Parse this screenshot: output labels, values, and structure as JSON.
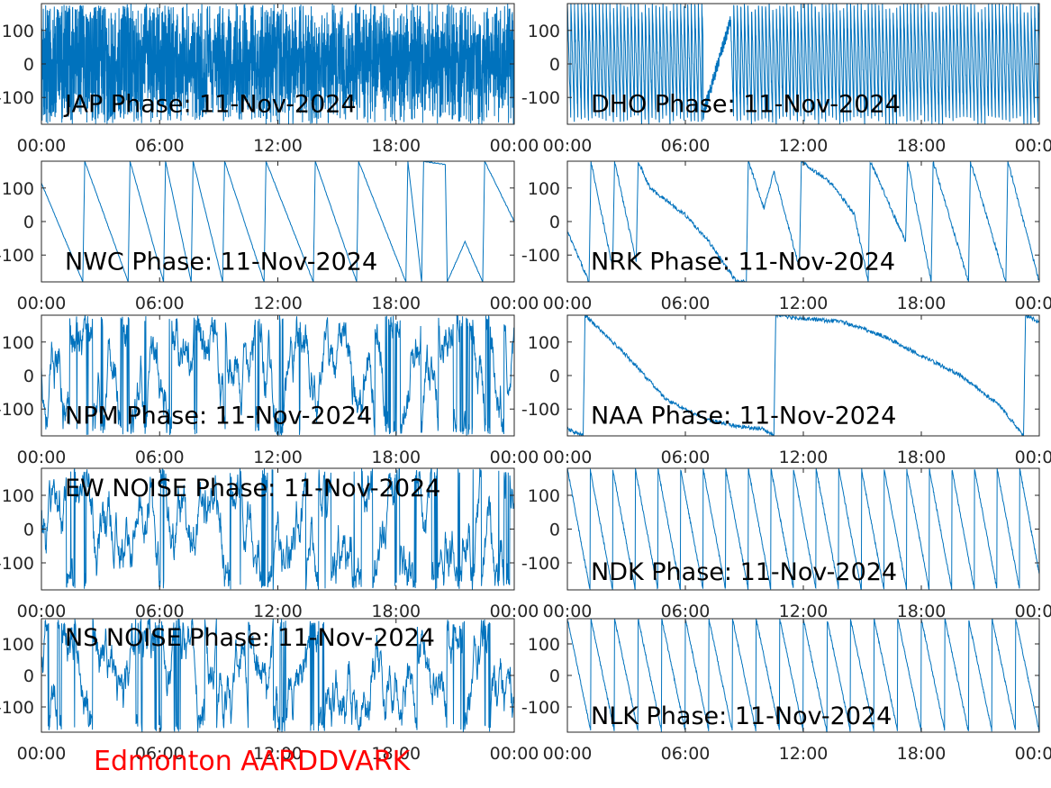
{
  "footer": "Edmonton AARDDVARK",
  "colors": {
    "trace": "#0072BD",
    "axes": "#262626",
    "footer": "#ff0000"
  },
  "chart_data": [
    {
      "type": "line",
      "title": "JAP Phase: 11-Nov-2024",
      "x_ticks": [
        "00:00",
        "06:00",
        "12:00",
        "18:00",
        "00:00"
      ],
      "y_ticks": [
        "-100",
        "0",
        "100"
      ],
      "ylim": [
        -180,
        180
      ],
      "xlim": [
        0,
        24
      ],
      "style": "dense-noise"
    },
    {
      "type": "line",
      "title": "DHO Phase: 11-Nov-2024",
      "x_ticks": [
        "00:00",
        "06:00",
        "12:00",
        "18:00",
        "00:00"
      ],
      "y_ticks": [
        "-100",
        "0",
        "100"
      ],
      "ylim": [
        -180,
        180
      ],
      "xlim": [
        0,
        24
      ],
      "style": "fast-sawtooth"
    },
    {
      "type": "line",
      "title": "NWC Phase: 11-Nov-2024",
      "x_ticks": [
        "00:00",
        "06:00",
        "12:00",
        "18:00",
        "00:00"
      ],
      "y_ticks": [
        "-100",
        "0",
        "100"
      ],
      "ylim": [
        -180,
        180
      ],
      "xlim": [
        0,
        24
      ],
      "style": "sawtooth",
      "points": [
        [
          0,
          115
        ],
        [
          2.1,
          -180
        ],
        [
          2.2,
          180
        ],
        [
          4.4,
          -180
        ],
        [
          4.5,
          180
        ],
        [
          6.2,
          -180
        ],
        [
          6.3,
          180
        ],
        [
          7.6,
          -180
        ],
        [
          7.7,
          180
        ],
        [
          9.2,
          -180
        ],
        [
          9.3,
          180
        ],
        [
          11.3,
          -180
        ],
        [
          11.4,
          180
        ],
        [
          13.8,
          -180
        ],
        [
          13.9,
          180
        ],
        [
          16,
          -180
        ],
        [
          16.1,
          180
        ],
        [
          18.5,
          -180
        ],
        [
          18.6,
          180
        ],
        [
          19.3,
          -180
        ],
        [
          19.4,
          180
        ],
        [
          20.5,
          170
        ],
        [
          20.6,
          -180
        ],
        [
          21.5,
          -60
        ],
        [
          22.4,
          -180
        ],
        [
          22.5,
          180
        ],
        [
          24,
          0
        ]
      ]
    },
    {
      "type": "line",
      "title": "NRK Phase: 11-Nov-2024",
      "x_ticks": [
        "00:00",
        "06:00",
        "12:00",
        "18:00",
        "00:00"
      ],
      "y_ticks": [
        "-100",
        "0",
        "100"
      ],
      "ylim": [
        -180,
        180
      ],
      "xlim": [
        0,
        24
      ],
      "style": "sawtooth-noisy",
      "points": [
        [
          0,
          -30
        ],
        [
          1.1,
          -180
        ],
        [
          1.2,
          180
        ],
        [
          2.3,
          -140
        ],
        [
          2.4,
          180
        ],
        [
          3.5,
          -120
        ],
        [
          3.6,
          180
        ],
        [
          4.2,
          100
        ],
        [
          6,
          20
        ],
        [
          7.2,
          -60
        ],
        [
          8.6,
          -180
        ],
        [
          9.1,
          -180
        ],
        [
          9.2,
          180
        ],
        [
          10,
          40
        ],
        [
          10.5,
          150
        ],
        [
          11.8,
          -140
        ],
        [
          11.9,
          180
        ],
        [
          13.5,
          110
        ],
        [
          14.6,
          20
        ],
        [
          15.3,
          -180
        ],
        [
          15.4,
          180
        ],
        [
          17.2,
          -60
        ],
        [
          17.3,
          180
        ],
        [
          18.5,
          -180
        ],
        [
          18.6,
          180
        ],
        [
          20.4,
          -180
        ],
        [
          20.5,
          180
        ],
        [
          22.3,
          -180
        ],
        [
          22.4,
          180
        ],
        [
          24,
          -180
        ]
      ]
    },
    {
      "type": "line",
      "title": "NPM Phase: 11-Nov-2024",
      "x_ticks": [
        "00:00",
        "06:00",
        "12:00",
        "18:00",
        "00:00"
      ],
      "y_ticks": [
        "-100",
        "0",
        "100"
      ],
      "ylim": [
        -180,
        180
      ],
      "xlim": [
        0,
        24
      ],
      "style": "noise"
    },
    {
      "type": "line",
      "title": "NAA Phase: 11-Nov-2024",
      "x_ticks": [
        "00:00",
        "06:00",
        "12:00",
        "18:00",
        "00:00"
      ],
      "y_ticks": [
        "-100",
        "0",
        "100"
      ],
      "ylim": [
        -180,
        180
      ],
      "xlim": [
        0,
        24
      ],
      "style": "slow-decline",
      "points": [
        [
          0,
          -160
        ],
        [
          0.8,
          -180
        ],
        [
          0.9,
          180
        ],
        [
          3,
          60
        ],
        [
          5,
          -70
        ],
        [
          7,
          -130
        ],
        [
          8.5,
          -150
        ],
        [
          10,
          -160
        ],
        [
          10.5,
          -180
        ],
        [
          10.6,
          180
        ],
        [
          12,
          170
        ],
        [
          14,
          160
        ],
        [
          16,
          120
        ],
        [
          18,
          60
        ],
        [
          20,
          0
        ],
        [
          22,
          -90
        ],
        [
          23.2,
          -180
        ],
        [
          23.3,
          180
        ],
        [
          24,
          160
        ]
      ]
    },
    {
      "type": "line",
      "title": "EW NOISE Phase: 11-Nov-2024",
      "x_ticks": [
        "00:00",
        "06:00",
        "12:00",
        "18:00",
        "00:00"
      ],
      "y_ticks": [
        "-100",
        "0",
        "100"
      ],
      "ylim": [
        -180,
        180
      ],
      "xlim": [
        0,
        24
      ],
      "style": "noise"
    },
    {
      "type": "line",
      "title": "NDK Phase: 11-Nov-2024",
      "x_ticks": [
        "00:00",
        "06:00",
        "12:00",
        "18:00",
        "00:00"
      ],
      "y_ticks": [
        "-100",
        "0",
        "100"
      ],
      "ylim": [
        -180,
        180
      ],
      "xlim": [
        0,
        24
      ],
      "style": "regular-sawtooth",
      "period_hours": 1.15
    },
    {
      "type": "line",
      "title": "NS NOISE Phase: 11-Nov-2024",
      "x_ticks": [
        "00:00",
        "06:00",
        "12:00",
        "18:00",
        "00:00"
      ],
      "y_ticks": [
        "-100",
        "0",
        "100"
      ],
      "ylim": [
        -180,
        180
      ],
      "xlim": [
        0,
        24
      ],
      "style": "noise"
    },
    {
      "type": "line",
      "title": "NLK Phase: 11-Nov-2024",
      "x_ticks": [
        "00:00",
        "06:00",
        "12:00",
        "18:00",
        "00:00"
      ],
      "y_ticks": [
        "-100",
        "0",
        "100"
      ],
      "ylim": [
        -180,
        180
      ],
      "xlim": [
        0,
        24
      ],
      "style": "regular-sawtooth",
      "period_hours": 1.2
    }
  ]
}
